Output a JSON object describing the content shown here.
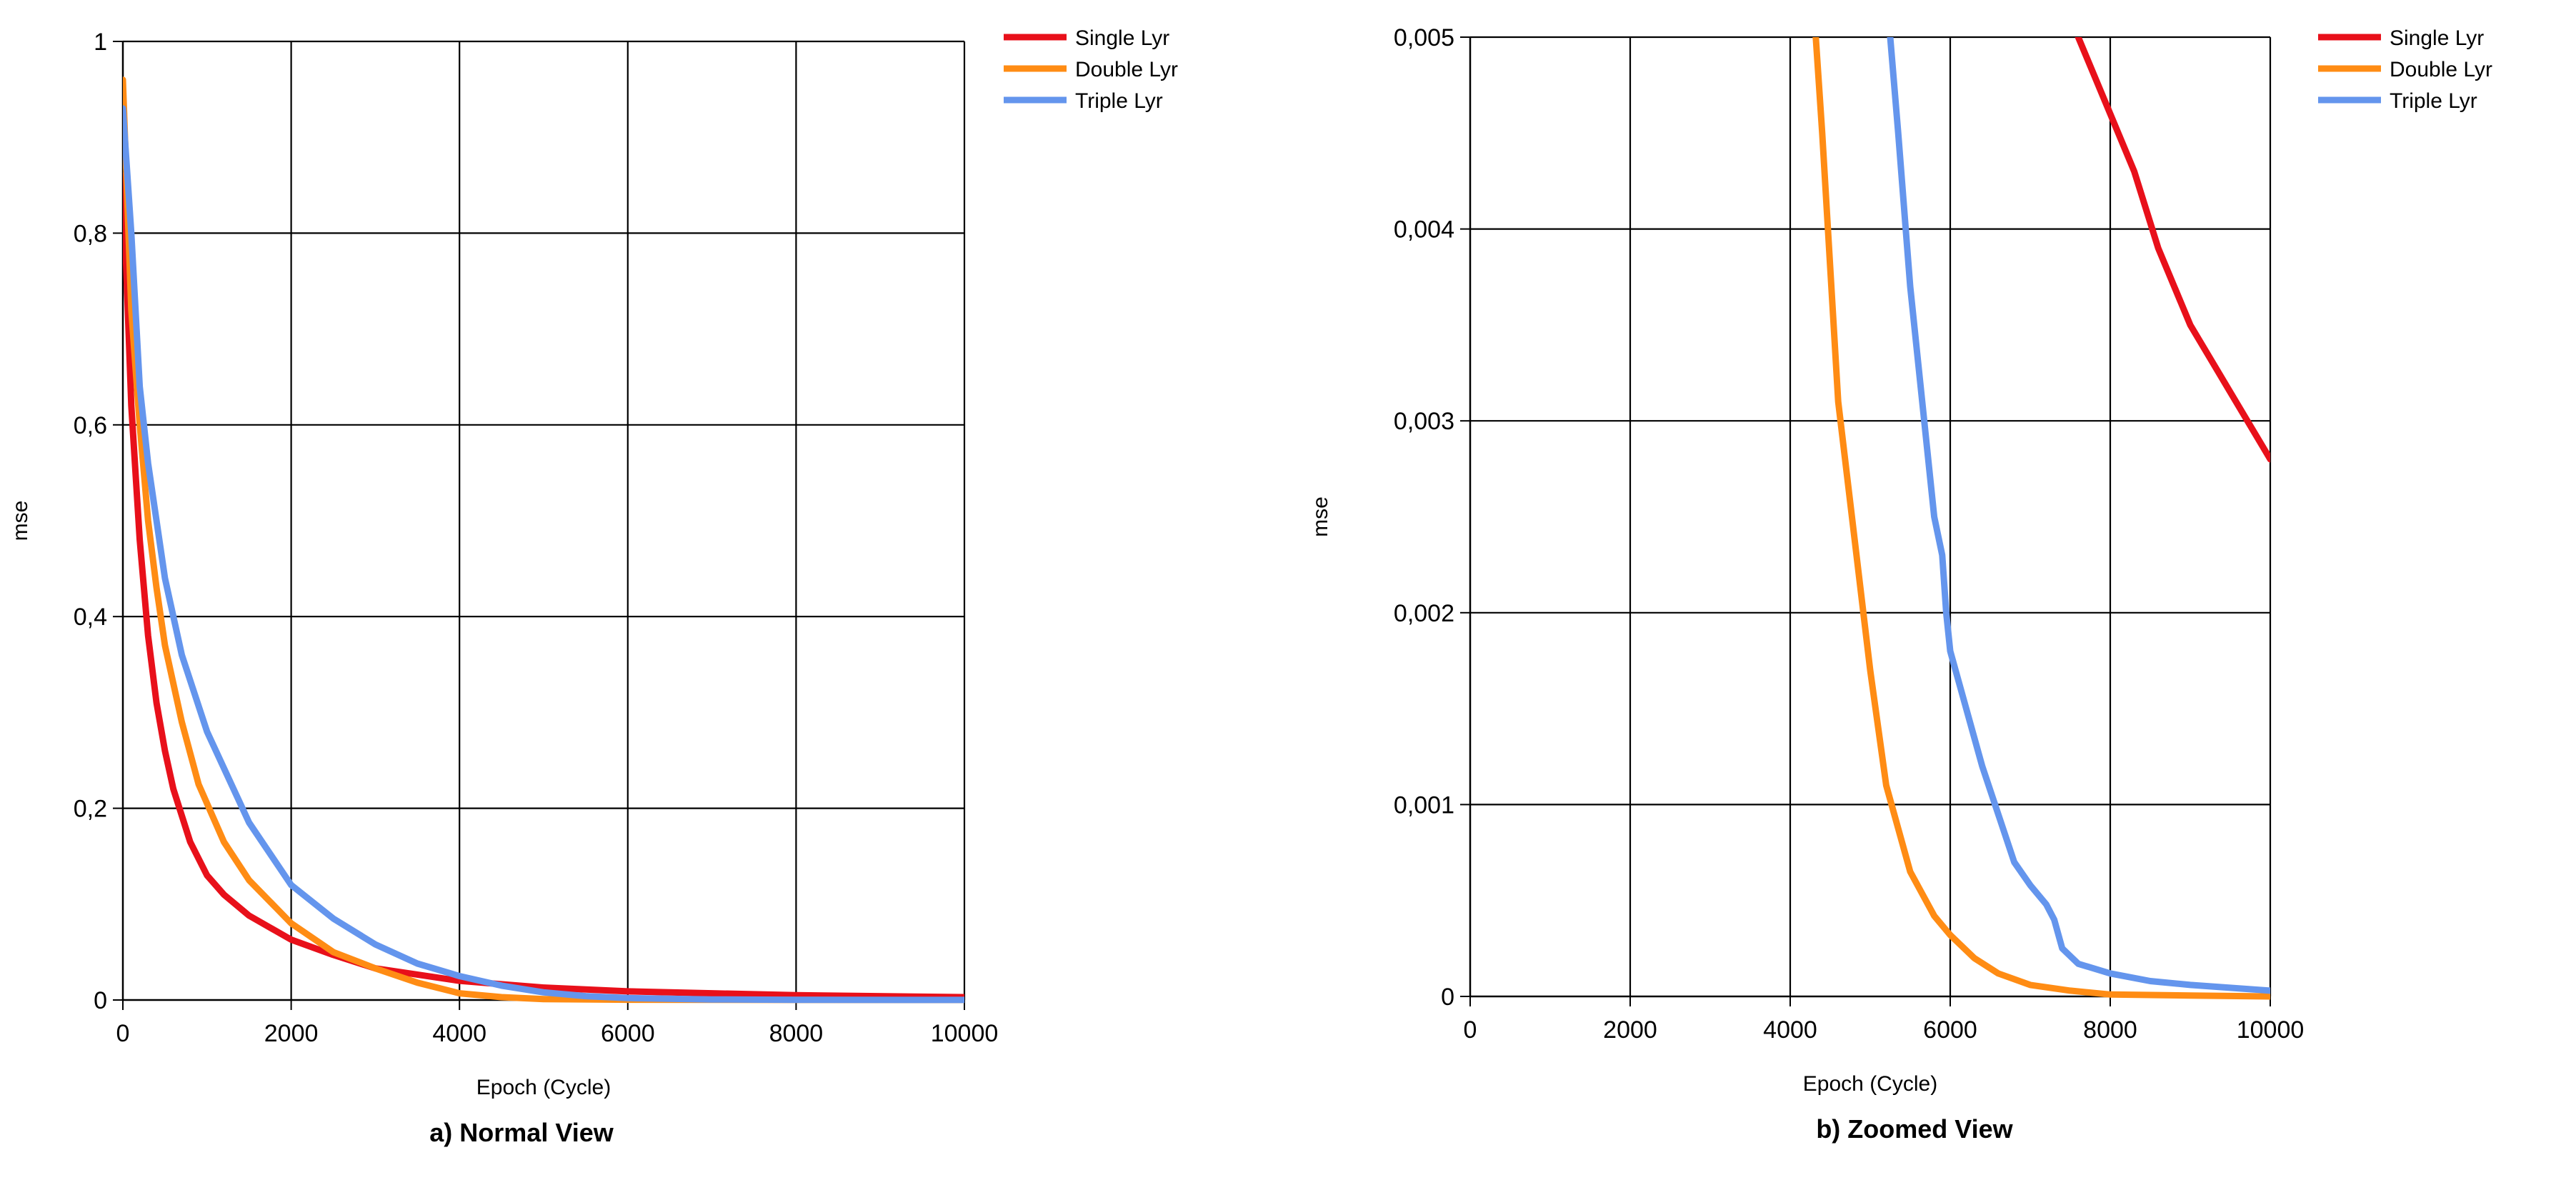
{
  "chart_data": [
    {
      "type": "line",
      "caption": "a) Normal View",
      "xlabel": "Epoch (Cycle)",
      "ylabel": "mse",
      "xlim": [
        0,
        10000
      ],
      "ylim": [
        0,
        1
      ],
      "x_ticks": [
        0,
        2000,
        4000,
        6000,
        8000,
        10000
      ],
      "y_ticks": [
        0,
        0.2,
        0.4,
        0.6,
        0.8,
        1
      ],
      "y_tick_labels": [
        "0",
        "0,2",
        "0,4",
        "0,6",
        "0,8",
        "1"
      ],
      "x_tick_labels": [
        "0",
        "2000",
        "4000",
        "6000",
        "8000",
        "10000"
      ],
      "grid": true,
      "legend_position": "top-right-outside",
      "series": [
        {
          "name": "Single Lyr",
          "color": "#e8101a",
          "points": [
            [
              0,
              0.86
            ],
            [
              100,
              0.62
            ],
            [
              200,
              0.48
            ],
            [
              300,
              0.38
            ],
            [
              400,
              0.31
            ],
            [
              500,
              0.26
            ],
            [
              600,
              0.22
            ],
            [
              800,
              0.165
            ],
            [
              1000,
              0.13
            ],
            [
              1200,
              0.11
            ],
            [
              1500,
              0.088
            ],
            [
              2000,
              0.063
            ],
            [
              2500,
              0.047
            ],
            [
              3000,
              0.033
            ],
            [
              4000,
              0.02
            ],
            [
              5000,
              0.013
            ],
            [
              6000,
              0.009
            ],
            [
              7000,
              0.007
            ],
            [
              8000,
              0.005
            ],
            [
              10000,
              0.003
            ]
          ]
        },
        {
          "name": "Double Lyr",
          "color": "#ff8c14",
          "points": [
            [
              0,
              0.96
            ],
            [
              100,
              0.72
            ],
            [
              200,
              0.6
            ],
            [
              300,
              0.5
            ],
            [
              400,
              0.43
            ],
            [
              500,
              0.37
            ],
            [
              700,
              0.29
            ],
            [
              900,
              0.225
            ],
            [
              1200,
              0.165
            ],
            [
              1500,
              0.125
            ],
            [
              2000,
              0.08
            ],
            [
              2500,
              0.05
            ],
            [
              3000,
              0.033
            ],
            [
              3500,
              0.018
            ],
            [
              4000,
              0.007
            ],
            [
              4500,
              0.003
            ],
            [
              5000,
              0.001
            ],
            [
              6000,
              0.0003
            ],
            [
              8000,
              0.0001
            ],
            [
              10000,
              0
            ]
          ]
        },
        {
          "name": "Triple Lyr",
          "color": "#6495ed",
          "points": [
            [
              0,
              0.93
            ],
            [
              100,
              0.8
            ],
            [
              200,
              0.64
            ],
            [
              300,
              0.56
            ],
            [
              500,
              0.44
            ],
            [
              700,
              0.36
            ],
            [
              1000,
              0.28
            ],
            [
              1500,
              0.185
            ],
            [
              2000,
              0.12
            ],
            [
              2500,
              0.085
            ],
            [
              3000,
              0.058
            ],
            [
              3500,
              0.038
            ],
            [
              4000,
              0.025
            ],
            [
              4500,
              0.015
            ],
            [
              5000,
              0.008
            ],
            [
              5500,
              0.004
            ],
            [
              6000,
              0.002
            ],
            [
              7000,
              0.0006
            ],
            [
              8000,
              0.0002
            ],
            [
              10000,
              5e-05
            ]
          ]
        }
      ]
    },
    {
      "type": "line",
      "caption": "b) Zoomed View",
      "xlabel": "Epoch (Cycle)",
      "ylabel": "mse",
      "xlim": [
        0,
        10000
      ],
      "ylim": [
        0,
        0.005
      ],
      "x_ticks": [
        0,
        2000,
        4000,
        6000,
        8000,
        10000
      ],
      "y_ticks": [
        0,
        0.001,
        0.002,
        0.003,
        0.004,
        0.005
      ],
      "y_tick_labels": [
        "0",
        "0,001",
        "0,002",
        "0,003",
        "0,004",
        "0,005"
      ],
      "x_tick_labels": [
        "0",
        "2000",
        "4000",
        "6000",
        "8000",
        "10000"
      ],
      "grid": true,
      "legend_position": "top-right-outside",
      "series": [
        {
          "name": "Single Lyr",
          "color": "#e8101a",
          "points": [
            [
              7600,
              0.005
            ],
            [
              7800,
              0.0048
            ],
            [
              8000,
              0.0046
            ],
            [
              8300,
              0.0043
            ],
            [
              8600,
              0.0039
            ],
            [
              9000,
              0.0035
            ],
            [
              9500,
              0.00315
            ],
            [
              10000,
              0.0028
            ]
          ]
        },
        {
          "name": "Double Lyr",
          "color": "#ff8c14",
          "points": [
            [
              4320,
              0.005
            ],
            [
              4400,
              0.0045
            ],
            [
              4500,
              0.0038
            ],
            [
              4600,
              0.0031
            ],
            [
              4800,
              0.0024
            ],
            [
              5000,
              0.0017
            ],
            [
              5200,
              0.0011
            ],
            [
              5500,
              0.00065
            ],
            [
              5800,
              0.00042
            ],
            [
              6000,
              0.00032
            ],
            [
              6300,
              0.0002
            ],
            [
              6600,
              0.00012
            ],
            [
              7000,
              6e-05
            ],
            [
              7500,
              3e-05
            ],
            [
              8000,
              1e-05
            ],
            [
              9000,
              5e-06
            ],
            [
              10000,
              0
            ]
          ]
        },
        {
          "name": "Triple Lyr",
          "color": "#6495ed",
          "points": [
            [
              5250,
              0.005
            ],
            [
              5350,
              0.0045
            ],
            [
              5500,
              0.0037
            ],
            [
              5650,
              0.0031
            ],
            [
              5800,
              0.0025
            ],
            [
              5900,
              0.0023
            ],
            [
              5950,
              0.002
            ],
            [
              6000,
              0.0018
            ],
            [
              6200,
              0.0015
            ],
            [
              6400,
              0.0012
            ],
            [
              6600,
              0.00095
            ],
            [
              6800,
              0.0007
            ],
            [
              7000,
              0.00058
            ],
            [
              7200,
              0.00048
            ],
            [
              7300,
              0.0004
            ],
            [
              7400,
              0.00025
            ],
            [
              7600,
              0.00017
            ],
            [
              8000,
              0.00012
            ],
            [
              8500,
              8e-05
            ],
            [
              9000,
              6e-05
            ],
            [
              10000,
              3e-05
            ]
          ]
        }
      ]
    }
  ]
}
